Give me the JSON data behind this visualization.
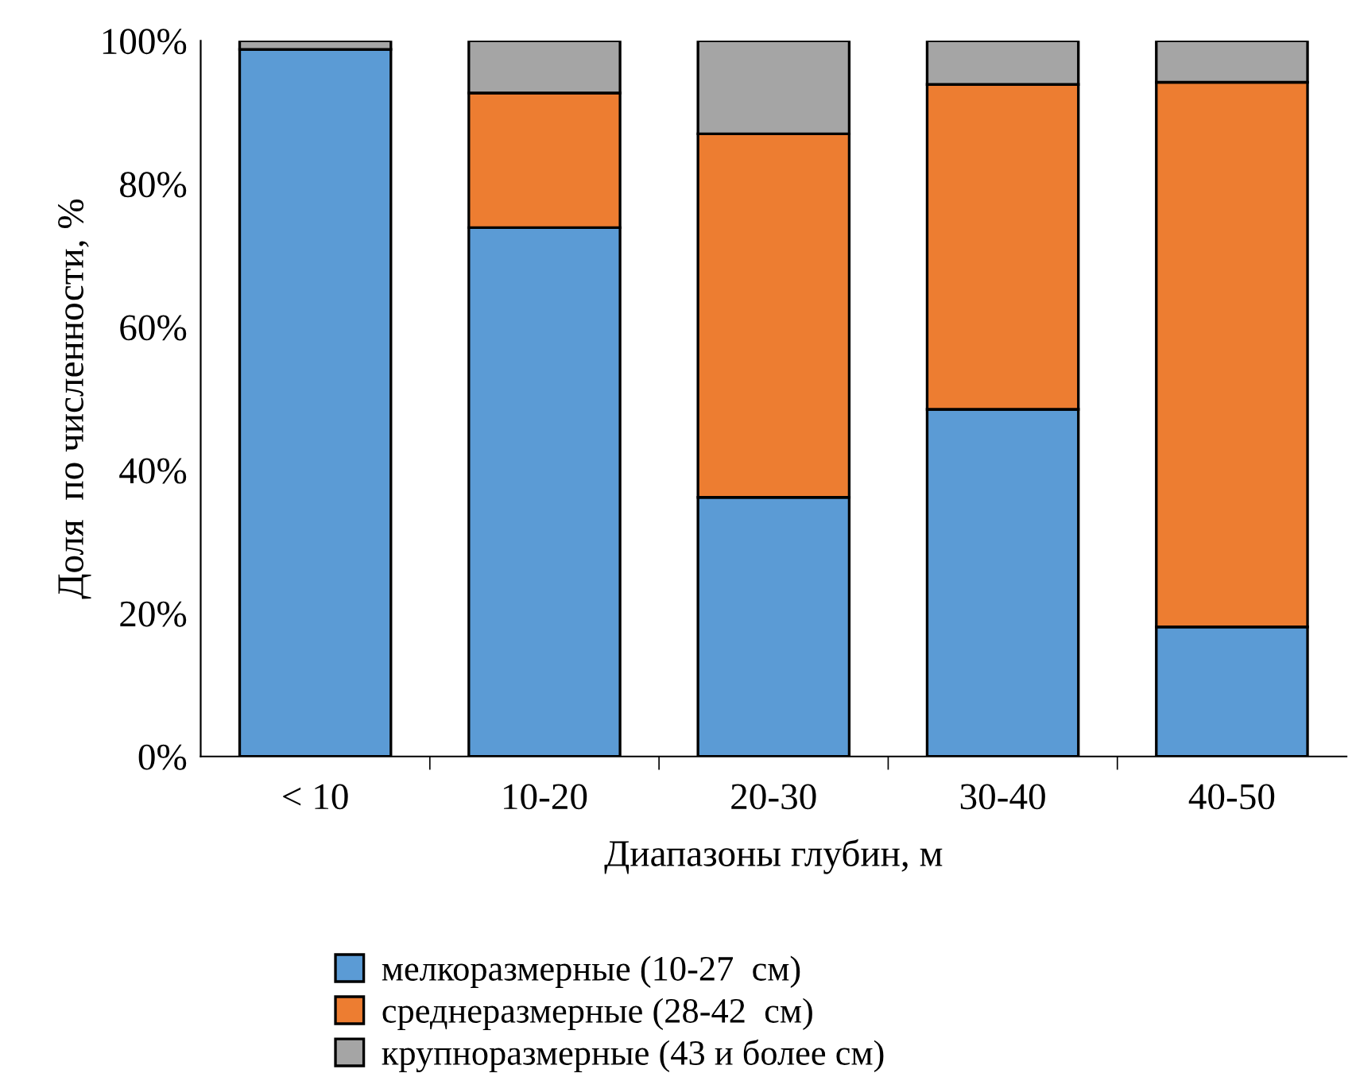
{
  "chart_data": {
    "type": "bar",
    "stacked": true,
    "xlabel": "Диапазоны глубин, м",
    "ylabel": "Доля  по численности, %",
    "categories": [
      "< 10",
      "10-20",
      "20-30",
      "30-40",
      "40-50"
    ],
    "series": [
      {
        "name": "мелкоразмерные (10-27  см)",
        "color": "#5b9bd5",
        "values": [
          98.8,
          73.9,
          36.2,
          48.5,
          18.1
        ]
      },
      {
        "name": "среднеразмерные (28-42  см)",
        "color": "#ed7d31",
        "values": [
          0,
          18.8,
          50.8,
          45.4,
          76.1
        ]
      },
      {
        "name": "крупноразмерные (43 и более см)",
        "color": "#a5a5a5",
        "values": [
          1.2,
          7.3,
          13.0,
          6.1,
          5.8
        ]
      }
    ],
    "ylim": [
      0,
      100
    ],
    "yticks": [
      {
        "value": 0,
        "label": "0%"
      },
      {
        "value": 20,
        "label": "20%"
      },
      {
        "value": 40,
        "label": "40%"
      },
      {
        "value": 60,
        "label": "60%"
      },
      {
        "value": 80,
        "label": "80%"
      },
      {
        "value": 100,
        "label": "100%"
      }
    ],
    "grid": false,
    "legend": "bottom"
  }
}
